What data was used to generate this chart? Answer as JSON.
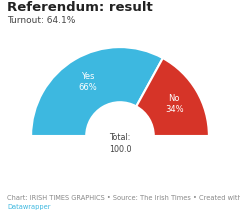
{
  "title": "Referendum: result",
  "subtitle": "Turnout: 64.1%",
  "yes_pct": 66,
  "no_pct": 34,
  "total_label": "Total:\n100.0",
  "yes_label": "Yes\n66%",
  "no_label": "No\n34%",
  "yes_color": "#3db8e0",
  "no_color": "#d63428",
  "bg_color": "#ffffff",
  "title_fontsize": 9.5,
  "subtitle_fontsize": 6.5,
  "label_fontsize": 6.0,
  "footer_fontsize": 4.8,
  "footer_color": "#888888",
  "footer_link_color": "#3db8e0",
  "footer_line1": "Chart: IRISH TIMES GRAPHICS • Source: The Irish Times • Created with",
  "footer_line2": "Datawrapper"
}
